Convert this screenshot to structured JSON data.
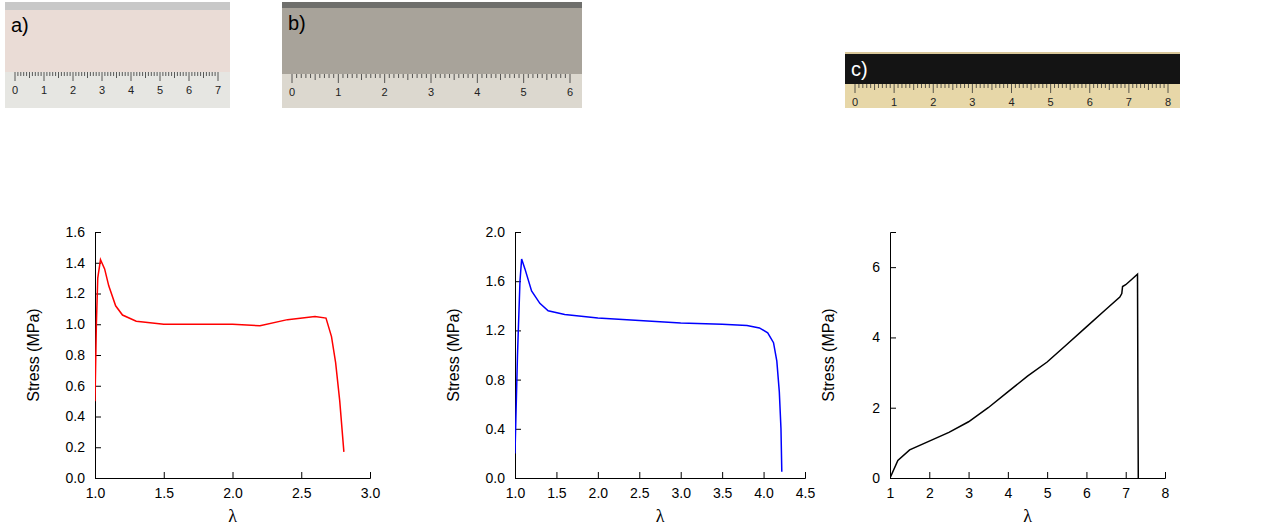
{
  "photos": [
    {
      "label": "a)",
      "ruler_labels": [
        0,
        1,
        2,
        3,
        4,
        5,
        6,
        7
      ]
    },
    {
      "label": "b)",
      "ruler_labels": [
        0,
        1,
        2,
        3,
        4,
        5,
        6
      ]
    },
    {
      "label": "c)",
      "ruler_labels": [
        0,
        1,
        2,
        3,
        4,
        5,
        6,
        7,
        8
      ]
    }
  ],
  "chart_data": [
    {
      "type": "line",
      "x_label": "λ",
      "y_label": "Stress (MPa)",
      "color": "#ff0000",
      "x": [
        1.0,
        1.01,
        1.02,
        1.04,
        1.07,
        1.1,
        1.15,
        1.2,
        1.3,
        1.4,
        1.5,
        1.7,
        2.0,
        2.2,
        2.4,
        2.6,
        2.68,
        2.72,
        2.75,
        2.78,
        2.81
      ],
      "values": [
        0.5,
        1.0,
        1.3,
        1.42,
        1.36,
        1.25,
        1.12,
        1.06,
        1.02,
        1.01,
        1.0,
        1.0,
        1.0,
        0.99,
        1.03,
        1.05,
        1.04,
        0.92,
        0.75,
        0.5,
        0.17
      ],
      "xlim": [
        1.0,
        3.0
      ],
      "xticks": [
        {
          "value": 1.0,
          "label": "1.0"
        },
        {
          "value": 1.5,
          "label": "1.5"
        },
        {
          "value": 2.0,
          "label": "2.0"
        },
        {
          "value": 2.5,
          "label": "2.5"
        },
        {
          "value": 3.0,
          "label": "3.0"
        }
      ],
      "ylim": [
        0,
        1.6
      ],
      "yticks": [
        {
          "value": 0,
          "label": "0.0"
        },
        0.2,
        0.4,
        0.6,
        0.8,
        {
          "value": 1,
          "label": "1.0"
        },
        1.2,
        1.4,
        1.6
      ]
    },
    {
      "type": "line",
      "x_label": "λ",
      "y_label": "Stress (MPa)",
      "color": "#0000ff",
      "x": [
        1.0,
        1.03,
        1.06,
        1.08,
        1.12,
        1.2,
        1.3,
        1.4,
        1.6,
        2.0,
        2.5,
        3.0,
        3.5,
        3.8,
        3.95,
        4.05,
        4.12,
        4.16,
        4.19,
        4.21,
        4.22
      ],
      "values": [
        0.2,
        1.0,
        1.6,
        1.78,
        1.7,
        1.52,
        1.42,
        1.36,
        1.33,
        1.3,
        1.28,
        1.26,
        1.25,
        1.24,
        1.22,
        1.18,
        1.1,
        0.95,
        0.7,
        0.4,
        0.05
      ],
      "xlim": [
        1.0,
        4.5
      ],
      "xticks": [
        {
          "value": 1.0,
          "label": "1.0"
        },
        1.5,
        {
          "value": 2.0,
          "label": "2.0"
        },
        2.5,
        {
          "value": 3.0,
          "label": "3.0"
        },
        3.5,
        {
          "value": 4.0,
          "label": "4.0"
        },
        4.5
      ],
      "ylim": [
        0,
        2.0
      ],
      "yticks": [
        {
          "value": 0,
          "label": "0.0"
        },
        0.4,
        0.8,
        1.2,
        1.6,
        {
          "value": 2,
          "label": "2.0"
        }
      ]
    },
    {
      "type": "line",
      "x_label": "λ",
      "y_label": "Stress (MPa)",
      "color": "#000000",
      "x": [
        1.0,
        1.2,
        1.5,
        2.0,
        2.5,
        3.0,
        3.5,
        4.0,
        4.5,
        5.0,
        5.5,
        6.0,
        6.5,
        6.85,
        6.9,
        6.92,
        7.0,
        7.15,
        7.3,
        7.31,
        7.32
      ],
      "values": [
        0,
        0.5,
        0.8,
        1.05,
        1.3,
        1.6,
        2.0,
        2.45,
        2.9,
        3.3,
        3.8,
        4.3,
        4.8,
        5.15,
        5.25,
        5.45,
        5.5,
        5.65,
        5.8,
        2.5,
        0
      ],
      "xlim": [
        1,
        8
      ],
      "xticks": [
        1,
        2,
        3,
        4,
        5,
        6,
        7,
        8
      ],
      "ylim": [
        0,
        7
      ],
      "yticks": [
        0,
        2,
        4,
        6
      ]
    }
  ]
}
